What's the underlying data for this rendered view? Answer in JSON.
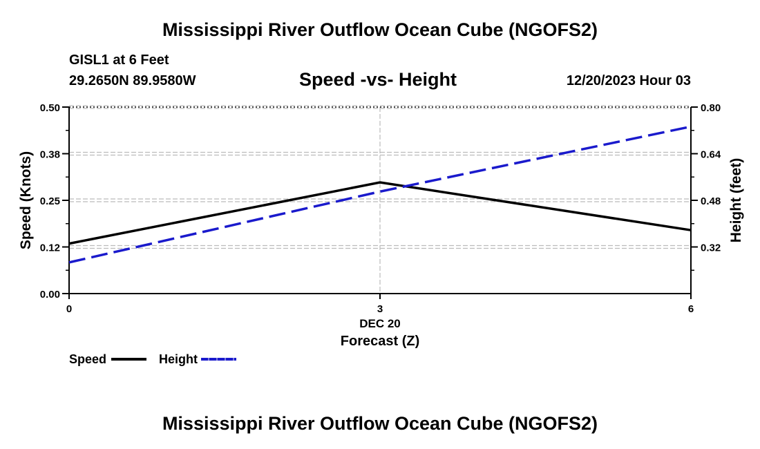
{
  "header": {
    "title": "Mississippi River Outflow Ocean Cube (NGOFS2)",
    "station": "GISL1 at 6 Feet",
    "coords": "29.2650N  89.9580W",
    "subtitle": "Speed -vs- Height",
    "datetime": "12/20/2023 Hour 03"
  },
  "footer": {
    "title": "Mississippi River Outflow Ocean Cube (NGOFS2)"
  },
  "legend": {
    "speed_label": "Speed",
    "height_label": "Height"
  },
  "colors": {
    "speed": "#000000",
    "height": "#1a1acc",
    "grid": "#bbbbbb"
  },
  "chart_data": {
    "type": "line",
    "x": [
      0,
      3,
      6
    ],
    "x_ticks": [
      0,
      3,
      6
    ],
    "x_tick_labels": [
      "0",
      "3",
      "6"
    ],
    "x_date_label": "DEC 20",
    "xlabel": "Forecast (Z)",
    "xlim": [
      0,
      6
    ],
    "ylabel": "Speed (Knots)",
    "ylim": [
      0,
      0.5
    ],
    "y_ticks": [
      0.0,
      0.125,
      0.25,
      0.375,
      0.5
    ],
    "y_tick_labels": [
      "0.00",
      "0.12",
      "0.25",
      "0.38",
      "0.50"
    ],
    "y2label": "Height (feet)",
    "y2lim": [
      0.16,
      0.8
    ],
    "y2_ticks": [
      0.32,
      0.48,
      0.64,
      0.8
    ],
    "y2_tick_labels": [
      "0.32",
      "0.48",
      "0.64",
      "0.80"
    ],
    "series": [
      {
        "name": "Speed",
        "axis": "left",
        "style": "solid",
        "values": [
          0.134,
          0.298,
          0.17
        ]
      },
      {
        "name": "Height",
        "axis": "right",
        "style": "dashed",
        "values": [
          0.267,
          0.51,
          0.733
        ]
      }
    ],
    "grid": true
  }
}
